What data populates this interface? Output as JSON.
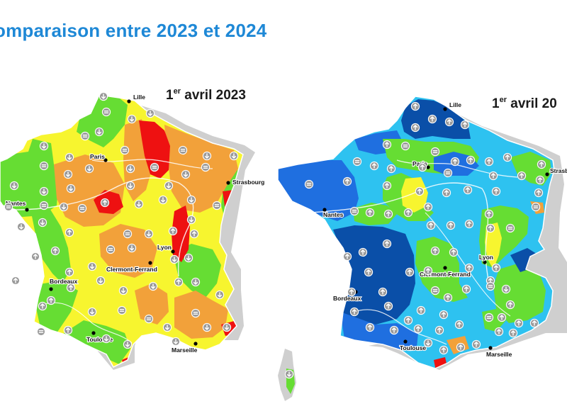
{
  "title": "omparaison entre 2023 et 2024",
  "maps": [
    {
      "label_prefix": "1",
      "label_sup": "er",
      "label_suffix": " avril 2023",
      "cities": [
        "Lille",
        "Paris",
        "Strasbourg",
        "Nantes",
        "Clermont-Ferrand",
        "Lyon",
        "Bordeaux",
        "Toulouse",
        "Marseille"
      ],
      "legend_colors": {
        "increase": "#ff0000",
        "high": "#f2a13a",
        "normal": "#ffff33",
        "low": "#66dd33",
        "very_low": "#2f7ae5"
      },
      "trend_icons": [
        "arrow-up",
        "arrow-down",
        "equal"
      ]
    },
    {
      "label_prefix": "1",
      "label_sup": "er",
      "label_suffix": " avril 20",
      "cities": [
        "Lille",
        "Paris",
        "Strasbourg",
        "Nantes",
        "Clermont-Ferrand",
        "Lyon",
        "Bordeaux",
        "Toulouse",
        "Marseille"
      ],
      "trend_icons": [
        "arrow-up",
        "arrow-down",
        "equal"
      ]
    }
  ]
}
